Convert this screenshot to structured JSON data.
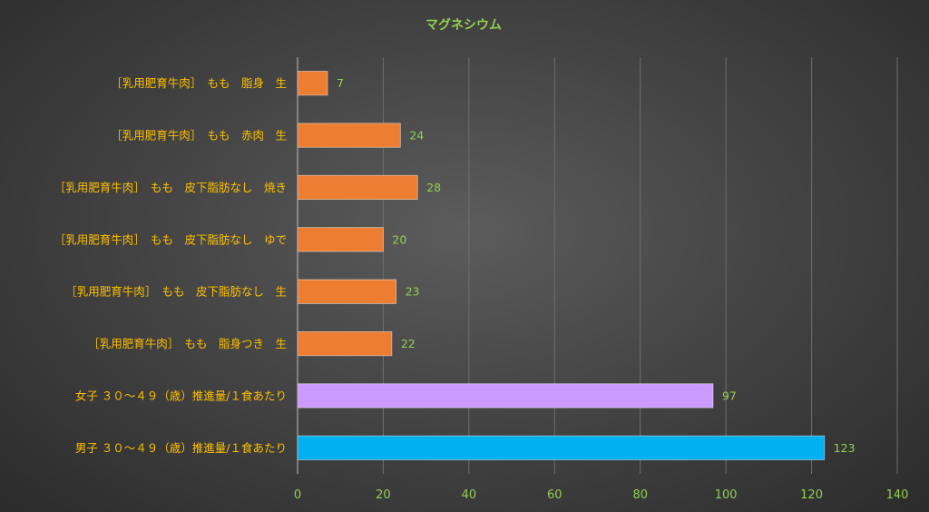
{
  "chart_data": {
    "type": "bar",
    "orientation": "horizontal",
    "title": "マグネシウム",
    "xlim": [
      0,
      140
    ],
    "x_ticks": [
      0,
      20,
      40,
      60,
      80,
      100,
      120,
      140
    ],
    "grid": true,
    "categories": [
      "［乳用肥育牛肉］　もも　脂身　生",
      "［乳用肥育牛肉］　もも　赤肉　生",
      "［乳用肥育牛肉］　もも　皮下脂肪なし　焼き",
      "［乳用肥育牛肉］　もも　皮下脂肪なし　ゆで",
      "［乳用肥育牛肉］　もも　皮下脂肪なし　生",
      "［乳用肥育牛肉］　もも　脂身つき　生",
      "女子 ３０～４９（歳）推進量/１食あたり",
      "男子 ３０～４９（歳）推進量/１食あたり"
    ],
    "values": [
      7,
      24,
      28,
      20,
      23,
      22,
      97,
      123
    ],
    "colors": [
      "#ed7d31",
      "#ed7d31",
      "#ed7d31",
      "#ed7d31",
      "#ed7d31",
      "#ed7d31",
      "#cc99ff",
      "#00b0f0"
    ]
  }
}
